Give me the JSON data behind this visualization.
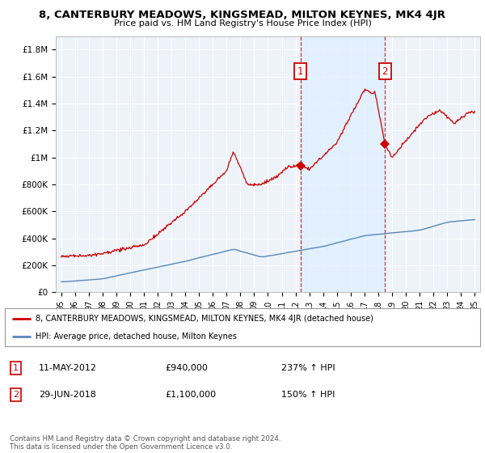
{
  "title": "8, CANTERBURY MEADOWS, KINGSMEAD, MILTON KEYNES, MK4 4JR",
  "subtitle": "Price paid vs. HM Land Registry's House Price Index (HPI)",
  "legend_line1": "8, CANTERBURY MEADOWS, KINGSMEAD, MILTON KEYNES, MK4 4JR (detached house)",
  "legend_line2": "HPI: Average price, detached house, Milton Keynes",
  "annotation1_date": "11-MAY-2012",
  "annotation1_price": "£940,000",
  "annotation1_hpi": "237% ↑ HPI",
  "annotation2_date": "29-JUN-2018",
  "annotation2_price": "£1,100,000",
  "annotation2_hpi": "150% ↑ HPI",
  "footer": "Contains HM Land Registry data © Crown copyright and database right 2024.\nThis data is licensed under the Open Government Licence v3.0.",
  "red_color": "#cc0000",
  "blue_color": "#5588bb",
  "shade_color": "#ddeeff",
  "background_color": "#eef3fa",
  "ylim_min": 0,
  "ylim_max": 1900000,
  "yticks": [
    0,
    200000,
    400000,
    600000,
    800000,
    1000000,
    1200000,
    1400000,
    1600000,
    1800000
  ],
  "ytick_labels": [
    "£0",
    "£200K",
    "£400K",
    "£600K",
    "£800K",
    "£1M",
    "£1.2M",
    "£1.4M",
    "£1.6M",
    "£1.8M"
  ],
  "sale1_year": 2012.36,
  "sale1_price": 940000,
  "sale2_year": 2018.49,
  "sale2_price": 1100000
}
